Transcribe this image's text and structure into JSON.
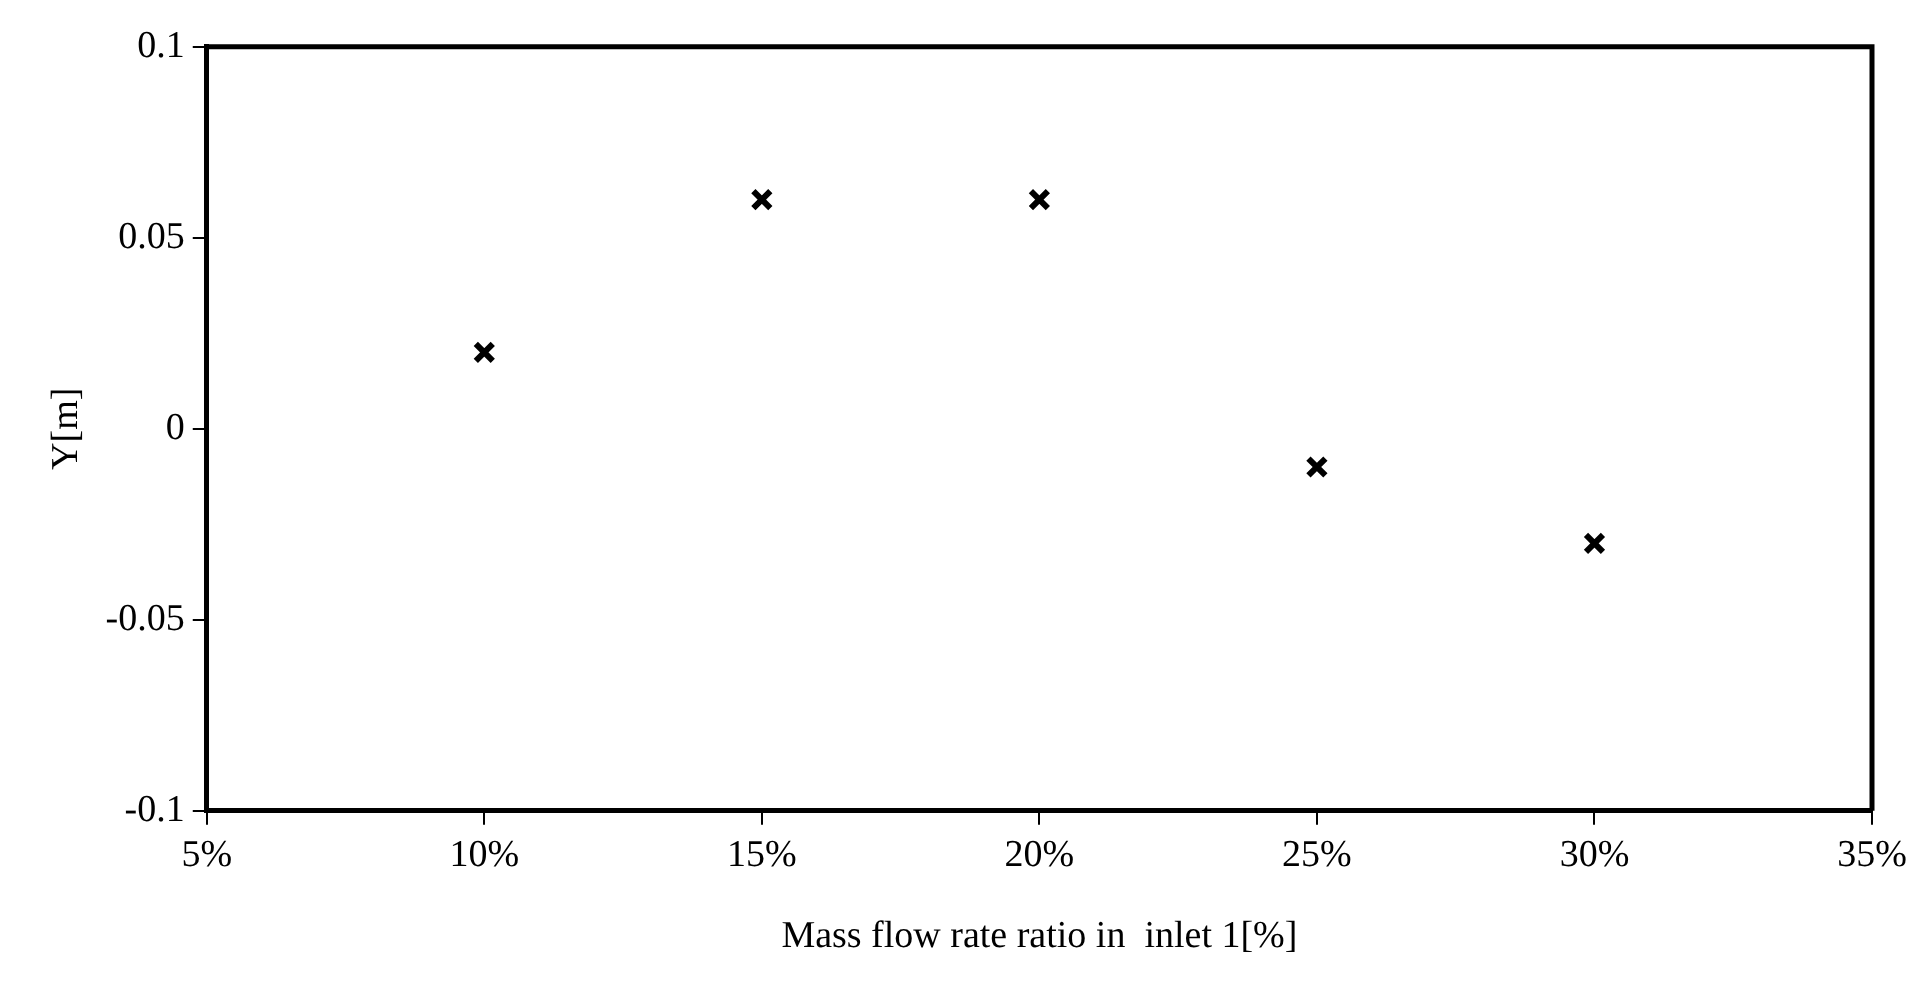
{
  "chart_data": {
    "type": "scatter",
    "xlabel": "Mass flow rate ratio in  inlet 1[%]",
    "ylabel": "Y[m]",
    "x": [
      10,
      15,
      20,
      25,
      30
    ],
    "series": [
      {
        "color": "#000000",
        "values": [
          0.02,
          0.06,
          0.06,
          -0.01,
          -0.03
        ]
      }
    ],
    "xlim": [
      5,
      35
    ],
    "xticks": [
      {
        "value": 5,
        "label": "5%"
      },
      {
        "value": 10,
        "label": "10%"
      },
      {
        "value": 15,
        "label": "15%"
      },
      {
        "value": 20,
        "label": "20%"
      },
      {
        "value": 25,
        "label": "25%"
      },
      {
        "value": 30,
        "label": "30%"
      },
      {
        "value": 35,
        "label": "35%"
      }
    ],
    "ylim": [
      -0.1,
      0.1
    ],
    "yticks": [
      -0.1,
      -0.05,
      0,
      0.05,
      0.1
    ],
    "grid": false,
    "legend": false,
    "marker": "cross"
  }
}
